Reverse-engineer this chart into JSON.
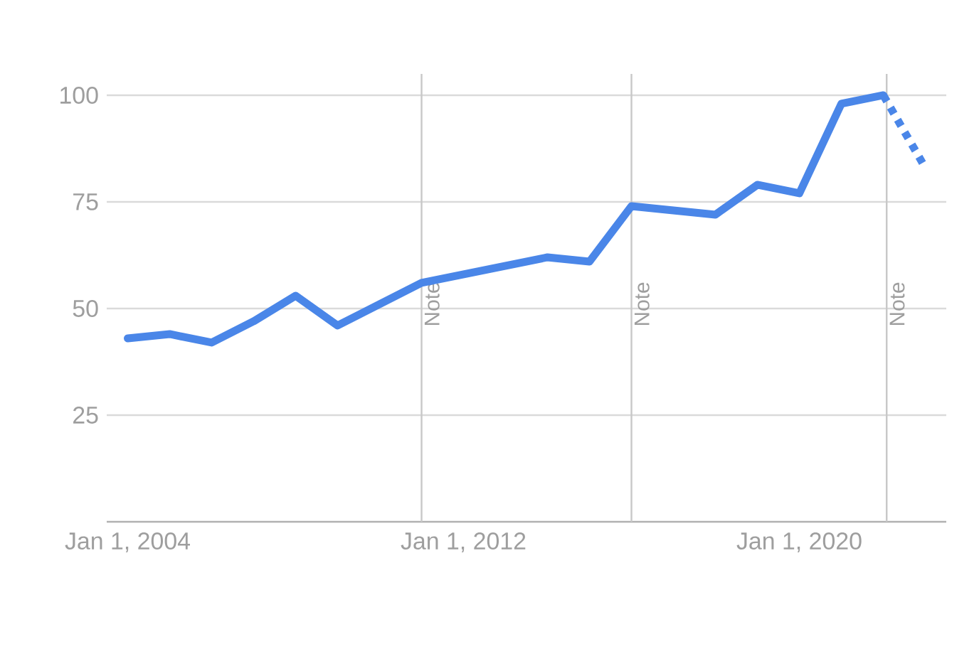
{
  "chart_data": {
    "type": "line",
    "series": [
      {
        "x": [
          "2004",
          "2005",
          "2006",
          "2007",
          "2008",
          "2009",
          "2010",
          "2011",
          "2012",
          "2013",
          "2014",
          "2015",
          "2016",
          "2017",
          "2018",
          "2019",
          "2020",
          "2021",
          "2022"
        ],
        "values": [
          43,
          44,
          42,
          47,
          53,
          46,
          51,
          56,
          58,
          60,
          62,
          61,
          74,
          73,
          72,
          79,
          77,
          98,
          100
        ],
        "color": "#4a86e8",
        "line_style": "solid"
      },
      {
        "x": [
          "2022",
          "2023"
        ],
        "values": [
          100,
          83
        ],
        "color": "#4a86e8",
        "line_style": "dotted"
      }
    ],
    "xlim": [
      "2003-07",
      "2023-07"
    ],
    "xticks": [
      {
        "value": "2004",
        "label": "Jan 1, 2004"
      },
      {
        "value": "2012",
        "label": "Jan 1, 2012"
      },
      {
        "value": "2020",
        "label": "Jan 1, 2020"
      }
    ],
    "ylim": [
      0,
      105
    ],
    "yticks": [
      25,
      50,
      75,
      100
    ],
    "grid": "y",
    "marker": "none",
    "ref_lines": [
      {
        "axis": "x",
        "value": "2011",
        "label": "Note",
        "color": "#c8c8c8"
      },
      {
        "axis": "x",
        "value": "2016",
        "label": "Note",
        "color": "#c8c8c8"
      },
      {
        "axis": "x",
        "value": "2022-02",
        "label": "Note",
        "color": "#c8c8c8"
      }
    ]
  }
}
